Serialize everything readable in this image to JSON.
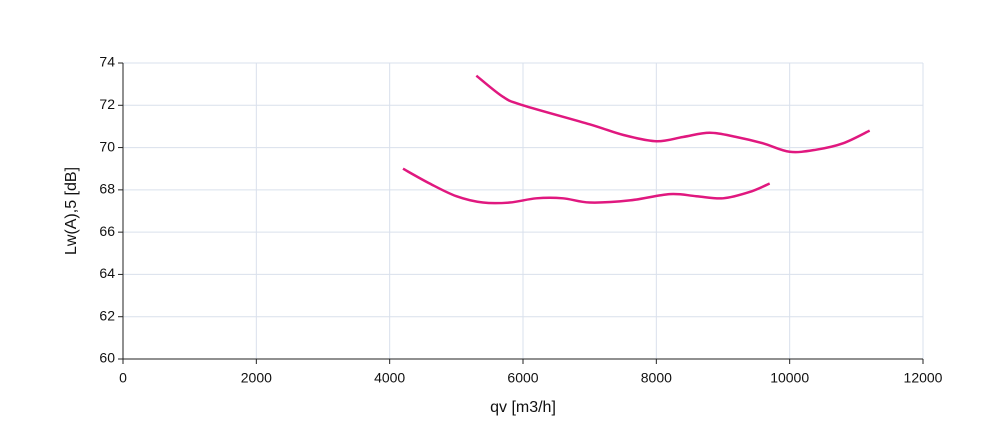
{
  "chart_data": {
    "type": "line",
    "x_label": "qv [m3/h]",
    "y_label": "Lw(A),5 [dB]",
    "xlim": [
      0,
      12000
    ],
    "xticks": [
      0,
      2000,
      4000,
      6000,
      8000,
      10000,
      12000
    ],
    "ylim": [
      60,
      74
    ],
    "yticks": [
      60,
      62,
      64,
      66,
      68,
      70,
      72,
      74
    ],
    "grid": true,
    "series": [
      {
        "color": "#e0187f",
        "x": [
          5300,
          5700,
          6000,
          7000,
          7500,
          8000,
          8400,
          8800,
          9200,
          9600,
          10000,
          10400,
          10800,
          11200
        ],
        "values": [
          73.4,
          72.4,
          72.0,
          71.1,
          70.6,
          70.3,
          70.5,
          70.7,
          70.5,
          70.2,
          69.8,
          69.9,
          70.2,
          70.8
        ]
      },
      {
        "color": "#e0187f",
        "x": [
          4200,
          4600,
          5000,
          5400,
          5800,
          6200,
          6600,
          7000,
          7600,
          8200,
          8600,
          9000,
          9400,
          9700
        ],
        "values": [
          69.0,
          68.3,
          67.7,
          67.4,
          67.4,
          67.6,
          67.6,
          67.4,
          67.5,
          67.8,
          67.7,
          67.6,
          67.9,
          68.3
        ]
      }
    ]
  }
}
